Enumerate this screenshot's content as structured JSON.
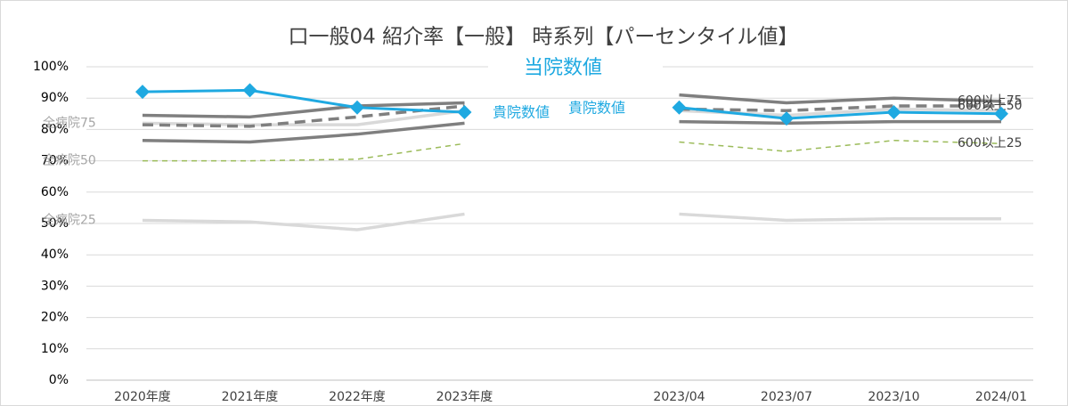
{
  "chart_data": {
    "type": "line",
    "title": "口一般04 紹介率【一般】 時系列【パーセンタイル値】",
    "categories": [
      "2020年度",
      "2021年度",
      "2022年度",
      "2023年度",
      null,
      "2023/04",
      "2023/07",
      "2023/10",
      "2024/01"
    ],
    "ylim": [
      0,
      100
    ],
    "yticks": [
      {
        "value": 0,
        "label": "0%"
      },
      {
        "value": 10,
        "label": "10%"
      },
      {
        "value": 20,
        "label": "20%"
      },
      {
        "value": 30,
        "label": "30%"
      },
      {
        "value": 40,
        "label": "40%"
      },
      {
        "value": 50,
        "label": "50%"
      },
      {
        "value": 60,
        "label": "60%"
      },
      {
        "value": 70,
        "label": "70%"
      },
      {
        "value": 80,
        "label": "80%"
      },
      {
        "value": 90,
        "label": "90%"
      },
      {
        "value": 100,
        "label": "100%"
      }
    ],
    "grid": true,
    "annotations": [
      "貴院数値",
      "貴院数値"
    ],
    "series": [
      {
        "name": "全病院75",
        "color": "#d9d9d9",
        "values": [
          82,
          81.5,
          81.5,
          86,
          null,
          null,
          null,
          null,
          null
        ]
      },
      {
        "name": "全病院50",
        "color": "#9bbb59",
        "dashed": true,
        "values": [
          70,
          70,
          70.5,
          75.5,
          null,
          null,
          null,
          null,
          null
        ]
      },
      {
        "name": "全病院25",
        "color": "#d9d9d9",
        "values": [
          51,
          50.5,
          48,
          53,
          null,
          null,
          null,
          null,
          null
        ]
      },
      {
        "color": "#7f7f7f",
        "values": [
          84.5,
          84,
          87.5,
          88.5,
          null,
          null,
          null,
          null,
          null
        ]
      },
      {
        "color": "#7f7f7f",
        "values": [
          76.5,
          76,
          78.5,
          82,
          null,
          null,
          null,
          null,
          null
        ]
      },
      {
        "color": "#7f7f7f",
        "dashed": true,
        "values": [
          81.5,
          81,
          84,
          87.5,
          null,
          null,
          null,
          null,
          null
        ]
      },
      {
        "color": "#d9d9d9",
        "values": [
          null,
          null,
          null,
          null,
          null,
          86,
          84.5,
          86.5,
          86
        ]
      },
      {
        "color": "#d9d9d9",
        "values": [
          null,
          null,
          null,
          null,
          null,
          53,
          51,
          51.5,
          51.5
        ]
      },
      {
        "color": "#7f7f7f",
        "values": [
          null,
          null,
          null,
          null,
          null,
          82.5,
          82,
          82.5,
          82.5
        ]
      },
      {
        "name": "600以上75",
        "color": "#7f7f7f",
        "values": [
          null,
          null,
          null,
          null,
          null,
          91,
          88.5,
          90,
          89
        ]
      },
      {
        "name": "600以上50",
        "color": "#7f7f7f",
        "dashed": true,
        "values": [
          null,
          null,
          null,
          null,
          null,
          86.5,
          86,
          87.5,
          87.5
        ]
      },
      {
        "name": "600以上25",
        "color": "#9bbb59",
        "dashed": true,
        "values": [
          null,
          null,
          null,
          null,
          null,
          76,
          73,
          76.5,
          75.5
        ]
      },
      {
        "name": "当院数値",
        "color": "#1fa9e1",
        "markers": true,
        "values": [
          92,
          92.5,
          87,
          85.5,
          null,
          87,
          83.5,
          85.5,
          85
        ]
      }
    ]
  }
}
